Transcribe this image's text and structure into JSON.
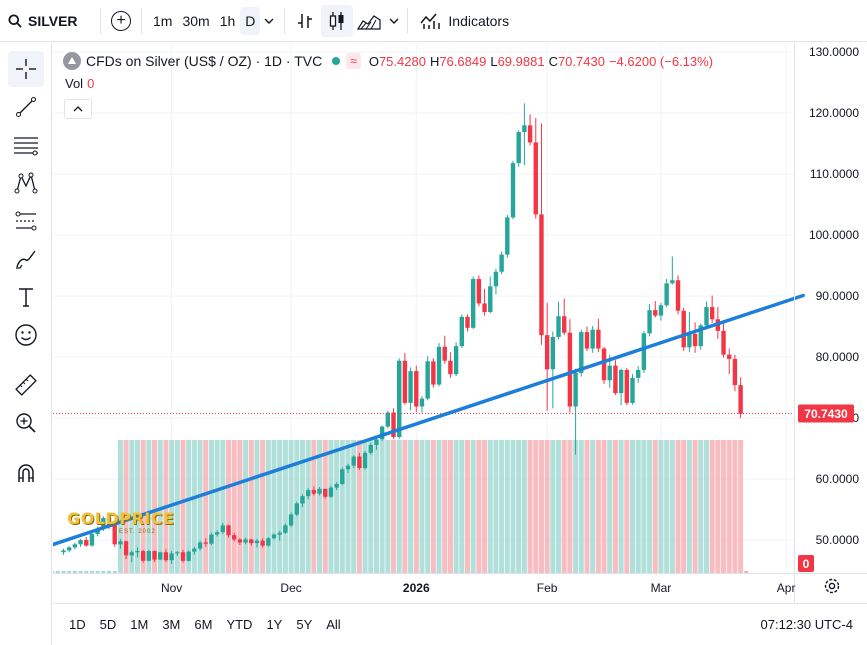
{
  "topbar": {
    "symbol": "SILVER",
    "intervals": [
      "1m",
      "30m",
      "1h",
      "D"
    ],
    "indicators_label": "Indicators"
  },
  "legend": {
    "title": "CFDs on Silver (US$ / OZ) · 1D · TVC",
    "badge": "≈",
    "open_label": "O",
    "open": "75.4280",
    "high_label": "H",
    "high": "76.6849",
    "low_label": "L",
    "low": "69.9881",
    "close_label": "C",
    "close": "70.7430",
    "change": "−4.6200 (−6.13%)",
    "vol_label": "Vol",
    "vol_value": "0"
  },
  "watermark": {
    "logo_text": "GOLDPRICE",
    "sub_text": "EST. 2002"
  },
  "bottombar": {
    "ranges": [
      "1D",
      "5D",
      "1M",
      "3M",
      "6M",
      "YTD",
      "1Y",
      "5Y",
      "All"
    ],
    "clock": "07:12:30 UTC-4"
  },
  "colors": {
    "up": "#26a69a",
    "down": "#f23645",
    "trendline": "#1e7fd8",
    "vol_up": "#a3d9d3",
    "vol_down": "#f7b1b6"
  },
  "chart_data": {
    "type": "candlestick",
    "title": "CFDs on Silver (US$ / OZ) · 1D · TVC",
    "ylim": [
      44.6,
      131.5
    ],
    "y_ticks": [
      "130.0000",
      "120.0000",
      "110.0000",
      "100.0000",
      "90.0000",
      "80.0000",
      "70.0000",
      "60.0000",
      "50.0000"
    ],
    "y_tick_values": [
      130,
      120,
      110,
      100,
      90,
      80,
      70,
      60,
      50
    ],
    "x_labels": [
      {
        "label": "Nov",
        "index": 19
      },
      {
        "label": "Dec",
        "index": 40
      },
      {
        "label": "2026",
        "index": 62
      },
      {
        "label": "Feb",
        "index": 85
      },
      {
        "label": "Mar",
        "index": 105
      },
      {
        "label": "Apr",
        "index": 127
      }
    ],
    "last_price": 70.743,
    "last_price_label": "70.7430",
    "volume_last_label": "0",
    "ohlc": [
      [
        48.0,
        48.6,
        47.6,
        48.3
      ],
      [
        48.3,
        49.0,
        48.0,
        48.8
      ],
      [
        48.8,
        49.6,
        48.5,
        49.3
      ],
      [
        49.3,
        50.2,
        48.9,
        50.0
      ],
      [
        50.0,
        50.5,
        48.9,
        49.1
      ],
      [
        49.1,
        51.4,
        48.9,
        51.0
      ],
      [
        51.0,
        52.2,
        50.6,
        51.8
      ],
      [
        51.8,
        53.9,
        51.5,
        53.6
      ],
      [
        53.6,
        54.2,
        51.8,
        52.5
      ],
      [
        52.5,
        52.9,
        48.9,
        49.3
      ],
      [
        49.3,
        50.2,
        48.6,
        49.8
      ],
      [
        49.8,
        49.9,
        46.9,
        47.5
      ],
      [
        47.5,
        48.3,
        46.4,
        48.0
      ],
      [
        48.0,
        48.8,
        47.2,
        48.2
      ],
      [
        48.2,
        48.4,
        46.3,
        46.6
      ],
      [
        46.6,
        48.4,
        46.5,
        48.2
      ],
      [
        48.2,
        48.3,
        46.4,
        46.8
      ],
      [
        46.8,
        48.1,
        46.7,
        48.0
      ],
      [
        48.0,
        48.5,
        46.4,
        46.7
      ],
      [
        46.7,
        48.2,
        46.1,
        47.8
      ],
      [
        47.8,
        48.2,
        47.4,
        48.0
      ],
      [
        48.0,
        48.4,
        46.3,
        46.6
      ],
      [
        46.6,
        48.3,
        46.5,
        48.1
      ],
      [
        48.1,
        48.9,
        47.6,
        48.6
      ],
      [
        48.6,
        49.9,
        48.3,
        49.6
      ],
      [
        49.6,
        50.3,
        48.9,
        49.4
      ],
      [
        49.4,
        51.2,
        49.2,
        50.9
      ],
      [
        50.9,
        51.6,
        50.6,
        51.3
      ],
      [
        51.3,
        52.8,
        51.0,
        52.4
      ],
      [
        52.4,
        52.5,
        50.4,
        50.8
      ],
      [
        50.8,
        51.2,
        49.8,
        50.1
      ],
      [
        50.1,
        50.3,
        49.2,
        49.6
      ],
      [
        49.6,
        50.4,
        49.3,
        50.1
      ],
      [
        50.1,
        50.2,
        49.1,
        49.5
      ],
      [
        49.5,
        50.2,
        48.8,
        49.9
      ],
      [
        49.9,
        50.3,
        48.8,
        49.1
      ],
      [
        49.1,
        50.5,
        48.9,
        50.3
      ],
      [
        50.3,
        51.1,
        50.1,
        50.9
      ],
      [
        50.9,
        51.5,
        49.9,
        51.2
      ],
      [
        51.2,
        52.7,
        51.0,
        52.4
      ],
      [
        52.4,
        54.5,
        52.1,
        54.2
      ],
      [
        54.2,
        56.3,
        53.9,
        56.0
      ],
      [
        56.0,
        57.5,
        55.4,
        57.2
      ],
      [
        57.2,
        58.5,
        56.7,
        58.2
      ],
      [
        58.2,
        58.8,
        57.3,
        57.6
      ],
      [
        57.6,
        58.7,
        57.3,
        58.4
      ],
      [
        58.4,
        58.4,
        56.8,
        57.1
      ],
      [
        57.1,
        58.9,
        56.9,
        58.6
      ],
      [
        58.6,
        59.5,
        58.2,
        59.2
      ],
      [
        59.2,
        61.9,
        59.0,
        61.6
      ],
      [
        61.6,
        62.5,
        61.0,
        62.2
      ],
      [
        62.2,
        63.9,
        61.8,
        63.7
      ],
      [
        63.7,
        64.3,
        61.5,
        61.8
      ],
      [
        61.8,
        64.6,
        61.6,
        64.3
      ],
      [
        64.3,
        65.9,
        64.0,
        65.6
      ],
      [
        65.6,
        67.0,
        64.8,
        66.5
      ],
      [
        66.5,
        68.8,
        66.2,
        68.6
      ],
      [
        68.6,
        71.2,
        68.3,
        70.9
      ],
      [
        70.9,
        71.6,
        66.6,
        66.9
      ],
      [
        66.9,
        79.8,
        66.6,
        79.4
      ],
      [
        79.4,
        80.7,
        72.2,
        72.5
      ],
      [
        72.5,
        78.3,
        71.3,
        77.7
      ],
      [
        77.7,
        78.6,
        71.0,
        71.9
      ],
      [
        71.9,
        73.6,
        70.9,
        73.2
      ],
      [
        73.2,
        80.2,
        72.9,
        79.3
      ],
      [
        79.3,
        79.8,
        75.0,
        75.5
      ],
      [
        75.5,
        82.3,
        75.2,
        81.7
      ],
      [
        81.7,
        83.5,
        78.9,
        79.4
      ],
      [
        79.4,
        80.8,
        76.6,
        77.2
      ],
      [
        77.2,
        82.4,
        76.9,
        81.8
      ],
      [
        81.8,
        87.0,
        81.5,
        86.6
      ],
      [
        86.6,
        87.0,
        84.2,
        84.8
      ],
      [
        84.8,
        93.2,
        84.6,
        92.8
      ],
      [
        92.8,
        93.4,
        88.3,
        88.8
      ],
      [
        88.8,
        91.2,
        86.8,
        87.4
      ],
      [
        87.4,
        93.2,
        87.2,
        91.6
      ],
      [
        91.6,
        94.5,
        90.3,
        94.0
      ],
      [
        94.0,
        97.3,
        93.6,
        96.8
      ],
      [
        96.8,
        103.3,
        96.3,
        102.9
      ],
      [
        102.9,
        112.2,
        102.6,
        111.8
      ],
      [
        111.8,
        117.2,
        111.2,
        116.9
      ],
      [
        116.9,
        121.6,
        111.5,
        118.0
      ],
      [
        118.0,
        119.8,
        114.7,
        115.2
      ],
      [
        115.2,
        119.2,
        102.7,
        103.4
      ],
      [
        103.4,
        118.3,
        82.0,
        83.6
      ],
      [
        83.6,
        88.9,
        71.2,
        78.0
      ],
      [
        78.0,
        84.2,
        71.6,
        83.3
      ],
      [
        83.3,
        89.1,
        82.9,
        86.7
      ],
      [
        86.7,
        89.6,
        83.6,
        84.0
      ],
      [
        84.0,
        86.2,
        70.9,
        71.9
      ],
      [
        71.9,
        78.1,
        64.0,
        77.4
      ],
      [
        77.4,
        84.5,
        76.8,
        84.1
      ],
      [
        84.1,
        85.0,
        81.0,
        81.4
      ],
      [
        81.4,
        85.1,
        80.7,
        84.5
      ],
      [
        84.5,
        86.3,
        80.8,
        81.4
      ],
      [
        81.4,
        81.7,
        75.6,
        76.2
      ],
      [
        76.2,
        80.4,
        75.0,
        78.6
      ],
      [
        78.6,
        79.5,
        73.8,
        74.1
      ],
      [
        74.1,
        78.1,
        72.1,
        77.9
      ],
      [
        77.9,
        78.2,
        72.1,
        72.5
      ],
      [
        72.5,
        77.2,
        72.2,
        76.6
      ],
      [
        76.6,
        78.5,
        75.8,
        77.9
      ],
      [
        77.9,
        84.3,
        77.4,
        83.9
      ],
      [
        83.9,
        88.7,
        83.4,
        87.7
      ],
      [
        87.7,
        89.2,
        86.5,
        86.8
      ],
      [
        86.8,
        88.9,
        86.0,
        88.5
      ],
      [
        88.5,
        92.8,
        88.2,
        92.1
      ],
      [
        92.1,
        96.5,
        91.9,
        92.6
      ],
      [
        92.6,
        93.4,
        87.0,
        87.6
      ],
      [
        87.6,
        88.1,
        81.0,
        81.6
      ],
      [
        81.6,
        87.4,
        80.8,
        83.8
      ],
      [
        83.8,
        85.7,
        80.7,
        81.8
      ],
      [
        81.8,
        85.5,
        81.2,
        85.2
      ],
      [
        85.2,
        89.1,
        84.8,
        88.2
      ],
      [
        88.2,
        90.1,
        85.6,
        86.2
      ],
      [
        86.2,
        88.2,
        83.0,
        84.3
      ],
      [
        84.3,
        85.8,
        79.9,
        80.4
      ],
      [
        80.4,
        81.4,
        77.2,
        79.7
      ],
      [
        79.7,
        80.4,
        74.4,
        75.4
      ],
      [
        75.4,
        76.7,
        70.0,
        70.7
      ]
    ],
    "trendline": [
      [
        -5,
        48.3
      ],
      [
        130,
        90.1
      ]
    ]
  }
}
